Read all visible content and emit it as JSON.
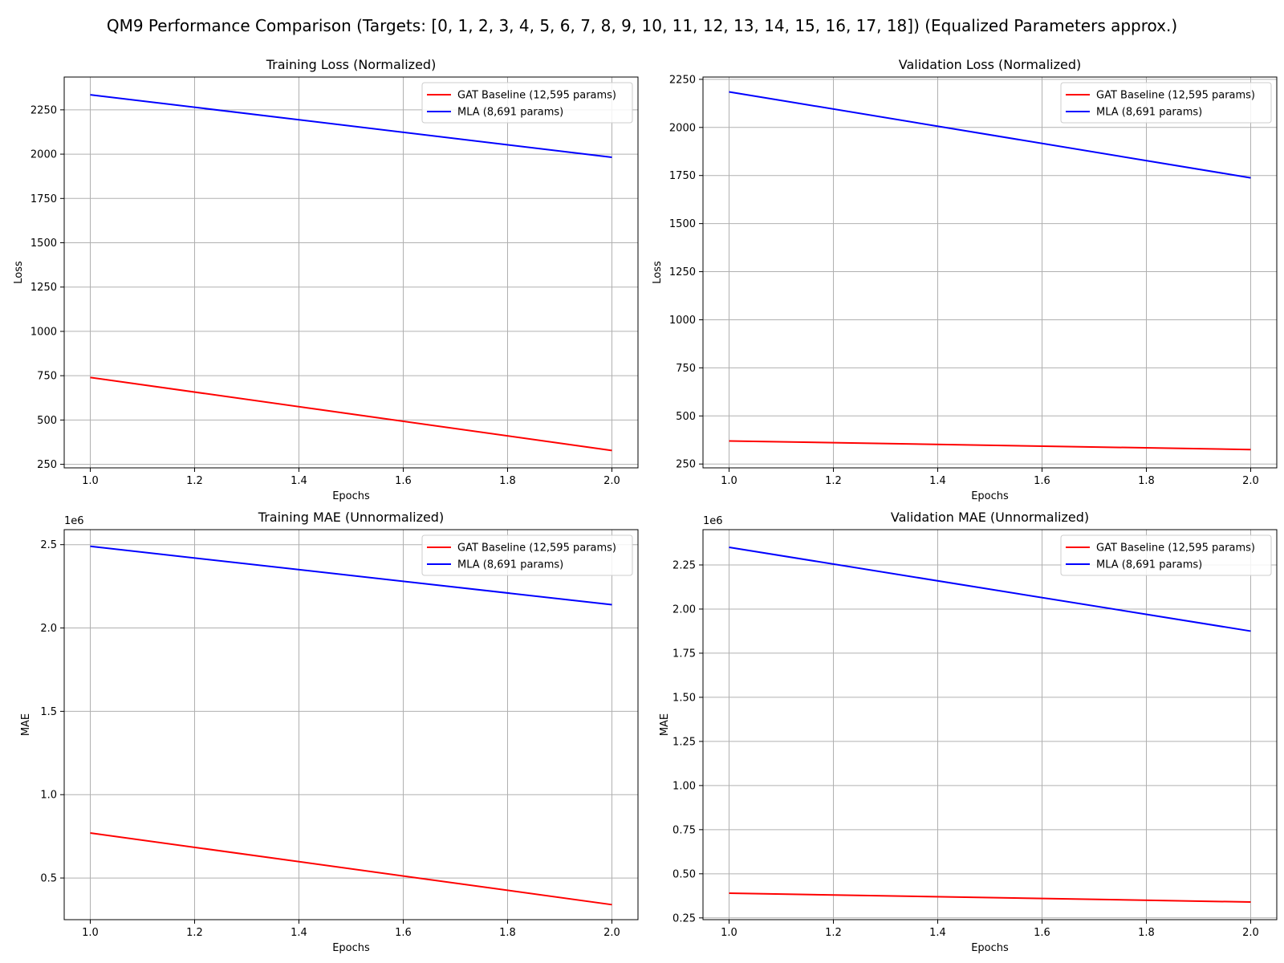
{
  "figure": {
    "title": "QM9 Performance Comparison (Targets: [0, 1, 2, 3, 4, 5, 6, 7, 8, 9, 10, 11, 12, 13, 14, 15, 16, 17, 18]) (Equalized Parameters approx.)"
  },
  "colors": {
    "gat": "#ff0000",
    "mla": "#0000ff"
  },
  "chart_data": [
    {
      "type": "line",
      "title": "Training Loss (Normalized)",
      "xlabel": "Epochs",
      "ylabel": "Loss",
      "xlim": [
        0.95,
        2.05
      ],
      "ylim": [
        230,
        2435
      ],
      "xticks": [
        1.0,
        1.2,
        1.4,
        1.6,
        1.8,
        2.0
      ],
      "yticks": [
        250,
        500,
        750,
        1000,
        1250,
        1500,
        1750,
        2000,
        2250
      ],
      "ytick_labels": [
        "250",
        "500",
        "750",
        "1000",
        "1250",
        "1500",
        "1750",
        "2000",
        "2250"
      ],
      "offset_label": "",
      "grid": true,
      "legend": "upper-right",
      "x": [
        1.0,
        2.0
      ],
      "series": [
        {
          "name": "GAT Baseline (12,595 params)",
          "color": "#ff0000",
          "values": [
            740,
            328
          ]
        },
        {
          "name": "MLA (8,691 params)",
          "color": "#0000ff",
          "values": [
            2335,
            1982
          ]
        }
      ]
    },
    {
      "type": "line",
      "title": "Validation Loss (Normalized)",
      "xlabel": "Epochs",
      "ylabel": "Loss",
      "xlim": [
        0.95,
        2.05
      ],
      "ylim": [
        230,
        2262
      ],
      "xticks": [
        1.0,
        1.2,
        1.4,
        1.6,
        1.8,
        2.0
      ],
      "yticks": [
        250,
        500,
        750,
        1000,
        1250,
        1500,
        1750,
        2000,
        2250
      ],
      "ytick_labels": [
        "250",
        "500",
        "750",
        "1000",
        "1250",
        "1500",
        "1750",
        "2000",
        "2250"
      ],
      "offset_label": "",
      "grid": true,
      "legend": "upper-right",
      "x": [
        1.0,
        2.0
      ],
      "series": [
        {
          "name": "GAT Baseline (12,595 params)",
          "color": "#ff0000",
          "values": [
            370,
            325
          ]
        },
        {
          "name": "MLA (8,691 params)",
          "color": "#0000ff",
          "values": [
            2185,
            1738
          ]
        }
      ]
    },
    {
      "type": "line",
      "title": "Training MAE (Unnormalized)",
      "xlabel": "Epochs",
      "ylabel": "MAE",
      "xlim": [
        0.95,
        2.05
      ],
      "ylim": [
        250000,
        2590000
      ],
      "xticks": [
        1.0,
        1.2,
        1.4,
        1.6,
        1.8,
        2.0
      ],
      "yticks": [
        500000,
        1000000,
        1500000,
        2000000,
        2500000
      ],
      "ytick_labels": [
        "0.5",
        "1.0",
        "1.5",
        "2.0",
        "2.5"
      ],
      "offset_label": "1e6",
      "grid": true,
      "legend": "upper-right",
      "x": [
        1.0,
        2.0
      ],
      "series": [
        {
          "name": "GAT Baseline (12,595 params)",
          "color": "#ff0000",
          "values": [
            770000,
            340000
          ]
        },
        {
          "name": "MLA (8,691 params)",
          "color": "#0000ff",
          "values": [
            2490000,
            2140000
          ]
        }
      ]
    },
    {
      "type": "line",
      "title": "Validation MAE (Unnormalized)",
      "xlabel": "Epochs",
      "ylabel": "MAE",
      "xlim": [
        0.95,
        2.05
      ],
      "ylim": [
        240000,
        2450000
      ],
      "xticks": [
        1.0,
        1.2,
        1.4,
        1.6,
        1.8,
        2.0
      ],
      "yticks": [
        250000,
        500000,
        750000,
        1000000,
        1250000,
        1500000,
        1750000,
        2000000,
        2250000
      ],
      "ytick_labels": [
        "0.25",
        "0.50",
        "0.75",
        "1.00",
        "1.25",
        "1.50",
        "1.75",
        "2.00",
        "2.25"
      ],
      "offset_label": "1e6",
      "grid": true,
      "legend": "upper-right",
      "x": [
        1.0,
        2.0
      ],
      "series": [
        {
          "name": "GAT Baseline (12,595 params)",
          "color": "#ff0000",
          "values": [
            390000,
            340000
          ]
        },
        {
          "name": "MLA (8,691 params)",
          "color": "#0000ff",
          "values": [
            2350000,
            1875000
          ]
        }
      ]
    }
  ]
}
